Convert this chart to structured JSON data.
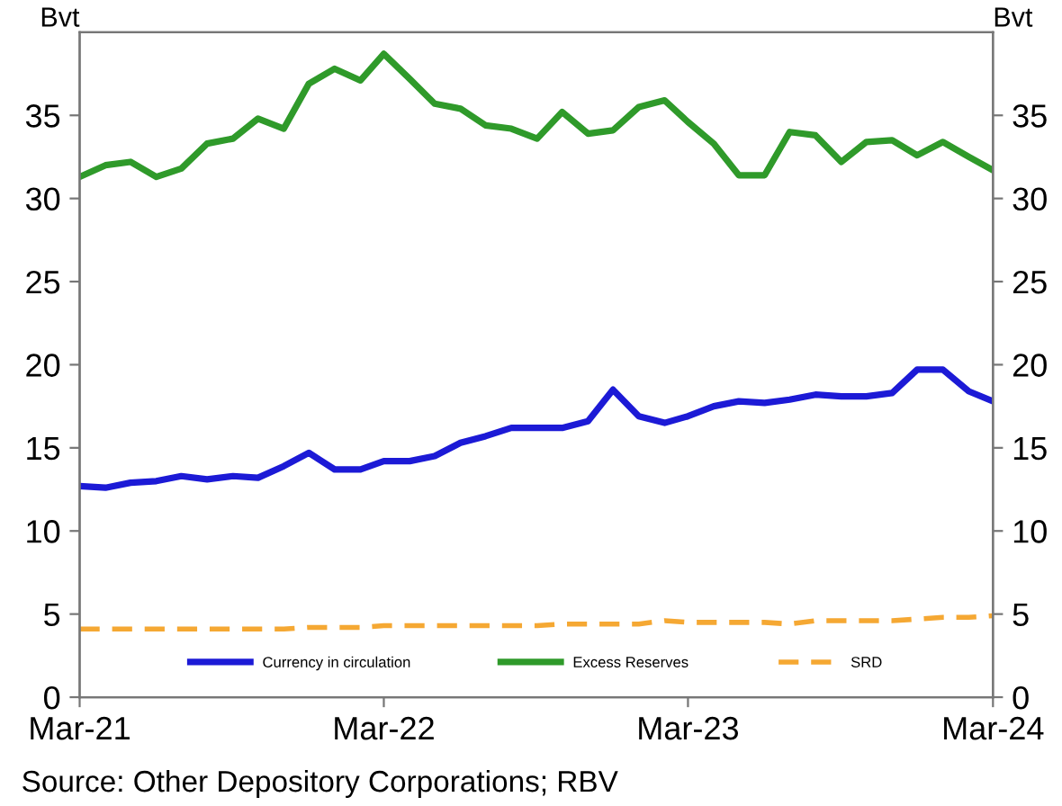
{
  "chart_data": {
    "type": "line",
    "ylabel": "Bvt",
    "y2label": "Bvt",
    "x": [
      "2021-03",
      "2021-04",
      "2021-05",
      "2021-06",
      "2021-07",
      "2021-08",
      "2021-09",
      "2021-10",
      "2021-11",
      "2021-12",
      "2022-01",
      "2022-02",
      "2022-03",
      "2022-04",
      "2022-05",
      "2022-06",
      "2022-07",
      "2022-08",
      "2022-09",
      "2022-10",
      "2022-11",
      "2022-12",
      "2023-01",
      "2023-02",
      "2023-03",
      "2023-04",
      "2023-05",
      "2023-06",
      "2023-07",
      "2023-08",
      "2023-09",
      "2023-10",
      "2023-11",
      "2023-12",
      "2024-01",
      "2024-02",
      "2024-03"
    ],
    "series": [
      {
        "name": "Currency in circulation",
        "color": "#1c1ad6",
        "line_style": "solid",
        "values": [
          12.7,
          12.6,
          12.9,
          13.0,
          13.3,
          13.1,
          13.3,
          13.2,
          13.9,
          14.7,
          13.7,
          13.7,
          14.2,
          14.2,
          14.5,
          15.3,
          15.7,
          16.2,
          16.2,
          16.2,
          16.6,
          18.5,
          16.9,
          16.5,
          16.9,
          17.5,
          17.8,
          17.7,
          17.9,
          18.2,
          18.1,
          18.1,
          18.3,
          19.7,
          19.7,
          18.4,
          17.8
        ]
      },
      {
        "name": "Excess Reserves",
        "color": "#2f9a2a",
        "line_style": "solid",
        "values": [
          31.3,
          32.0,
          32.2,
          31.3,
          31.8,
          33.3,
          33.6,
          34.8,
          34.2,
          36.9,
          37.8,
          37.1,
          38.7,
          37.2,
          35.7,
          35.4,
          34.4,
          34.2,
          33.6,
          35.2,
          33.9,
          34.1,
          35.5,
          35.9,
          34.6,
          33.3,
          31.4,
          31.4,
          34.0,
          33.8,
          32.2,
          33.4,
          33.5,
          32.6,
          33.4,
          32.5,
          31.7
        ]
      },
      {
        "name": "SRD",
        "color": "#f5a833",
        "line_style": "dashed",
        "values": [
          4.1,
          4.1,
          4.1,
          4.1,
          4.1,
          4.1,
          4.1,
          4.1,
          4.1,
          4.2,
          4.2,
          4.2,
          4.3,
          4.3,
          4.3,
          4.3,
          4.3,
          4.3,
          4.3,
          4.4,
          4.4,
          4.4,
          4.4,
          4.6,
          4.5,
          4.5,
          4.5,
          4.5,
          4.4,
          4.6,
          4.6,
          4.6,
          4.6,
          4.7,
          4.8,
          4.8,
          4.9
        ]
      }
    ],
    "ylim": [
      0,
      40
    ],
    "yticks": [
      0,
      5,
      10,
      15,
      20,
      25,
      30,
      35
    ],
    "y2lim": [
      0,
      40
    ],
    "y2ticks": [
      0,
      5,
      10,
      15,
      20,
      25,
      30,
      35
    ],
    "xlim": [
      "2021-03",
      "2024-03"
    ],
    "xticks": [
      {
        "value": "2021-03",
        "label": "Mar-21"
      },
      {
        "value": "2022-03",
        "label": "Mar-22"
      },
      {
        "value": "2023-03",
        "label": "Mar-23"
      },
      {
        "value": "2024-03",
        "label": "Mar-24"
      }
    ],
    "grid": false,
    "legend": "bottom",
    "marker": "none",
    "annotations": [
      "Source: Other Depository Corporations; RBV"
    ]
  }
}
